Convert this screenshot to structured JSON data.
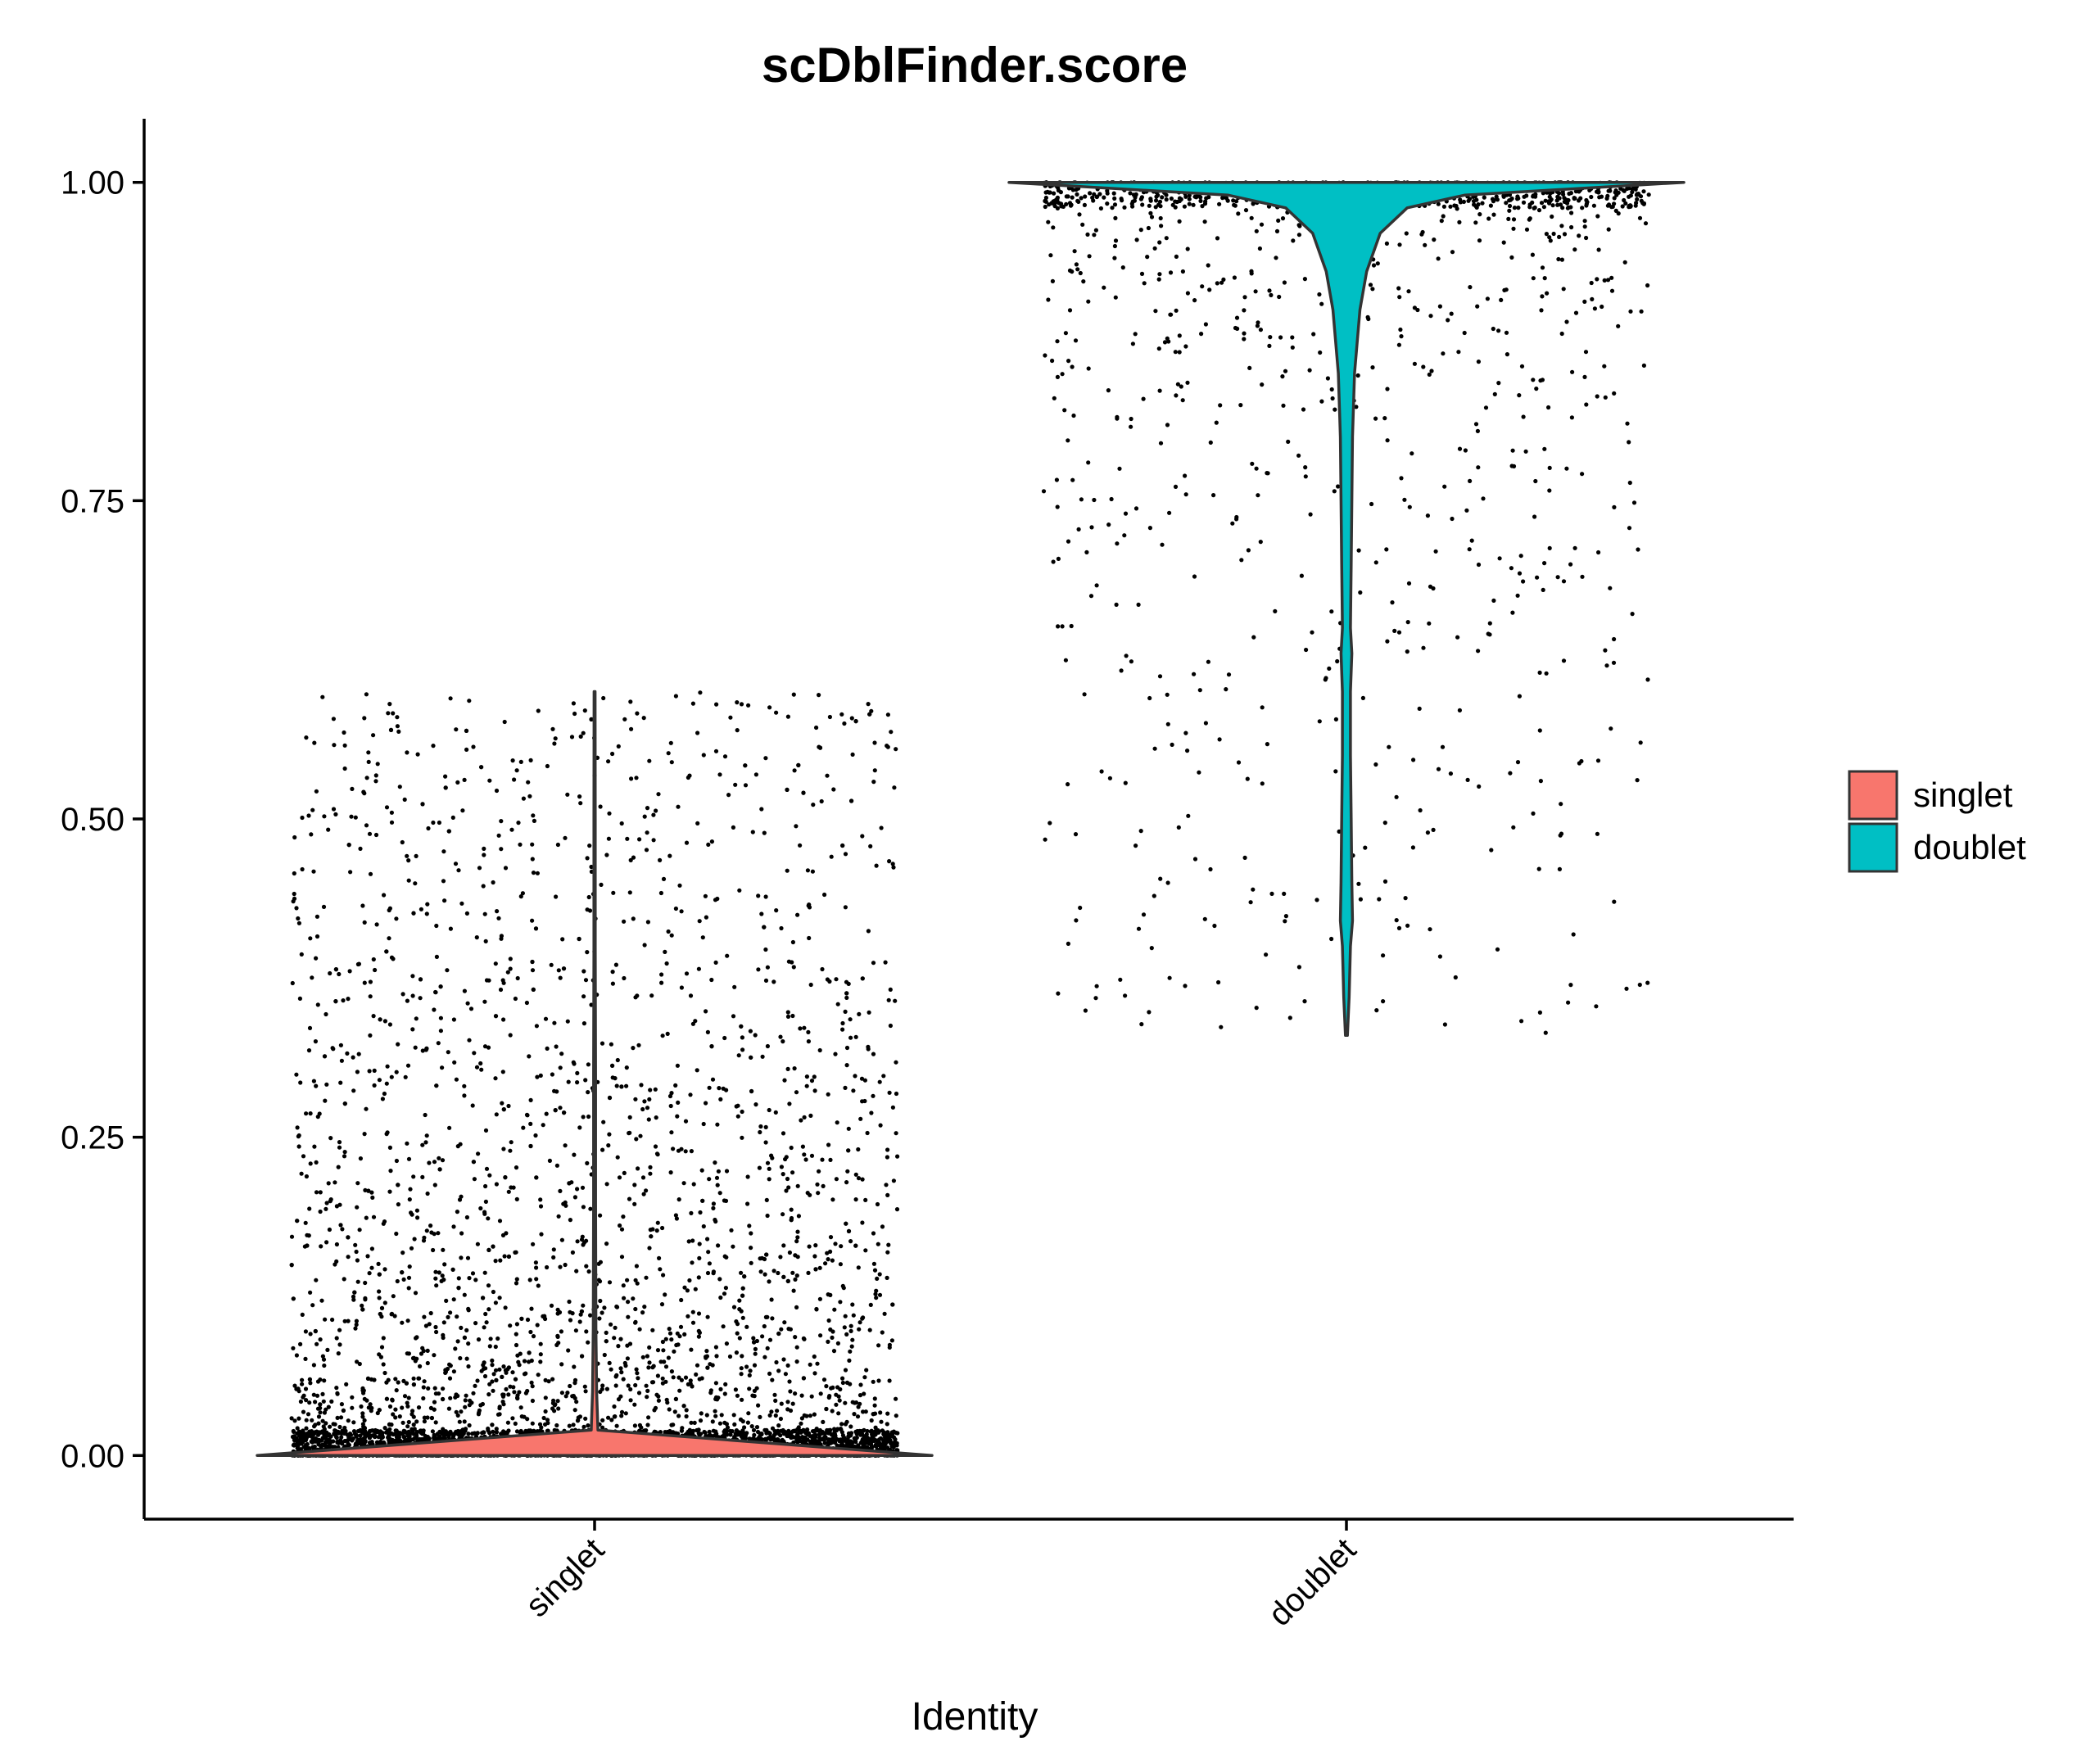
{
  "chart_data": {
    "type": "violin",
    "title": "scDblFinder.score",
    "xlabel": "Identity",
    "ylabel": "",
    "categories": [
      "singlet",
      "doublet"
    ],
    "yticks": [
      "0.00",
      "0.25",
      "0.50",
      "0.75",
      "1.00"
    ],
    "ytick_values": [
      0,
      0.25,
      0.5,
      0.75,
      1.0
    ],
    "ylim": [
      -0.05,
      1.05
    ],
    "grid": false,
    "legend": {
      "placement": "right",
      "entries": [
        {
          "name": "singlet",
          "color": "#F8766D"
        },
        {
          "name": "doublet",
          "color": "#00BFC4"
        }
      ]
    },
    "series": [
      {
        "name": "singlet",
        "color": "#F8766D",
        "range": [
          0.0,
          0.6
        ],
        "density": [
          [
            0.0,
            1.0
          ],
          [
            0.02,
            0.01
          ],
          [
            0.05,
            0.006
          ],
          [
            0.1,
            0.004
          ],
          [
            0.2,
            0.003
          ],
          [
            0.3,
            0.003
          ],
          [
            0.4,
            0.002
          ],
          [
            0.5,
            0.002
          ],
          [
            0.6,
            0.0015
          ]
        ]
      },
      {
        "name": "doublet",
        "color": "#00BFC4",
        "range": [
          0.33,
          1.0
        ],
        "density": [
          [
            0.33,
            0.003
          ],
          [
            0.36,
            0.008
          ],
          [
            0.4,
            0.012
          ],
          [
            0.42,
            0.018
          ],
          [
            0.45,
            0.016
          ],
          [
            0.5,
            0.014
          ],
          [
            0.55,
            0.012
          ],
          [
            0.6,
            0.012
          ],
          [
            0.63,
            0.016
          ],
          [
            0.65,
            0.012
          ],
          [
            0.7,
            0.014
          ],
          [
            0.75,
            0.016
          ],
          [
            0.8,
            0.018
          ],
          [
            0.85,
            0.024
          ],
          [
            0.9,
            0.04
          ],
          [
            0.93,
            0.06
          ],
          [
            0.96,
            0.1
          ],
          [
            0.98,
            0.18
          ],
          [
            0.99,
            0.35
          ],
          [
            1.0,
            1.0
          ]
        ]
      }
    ],
    "points_color": "#000000"
  }
}
